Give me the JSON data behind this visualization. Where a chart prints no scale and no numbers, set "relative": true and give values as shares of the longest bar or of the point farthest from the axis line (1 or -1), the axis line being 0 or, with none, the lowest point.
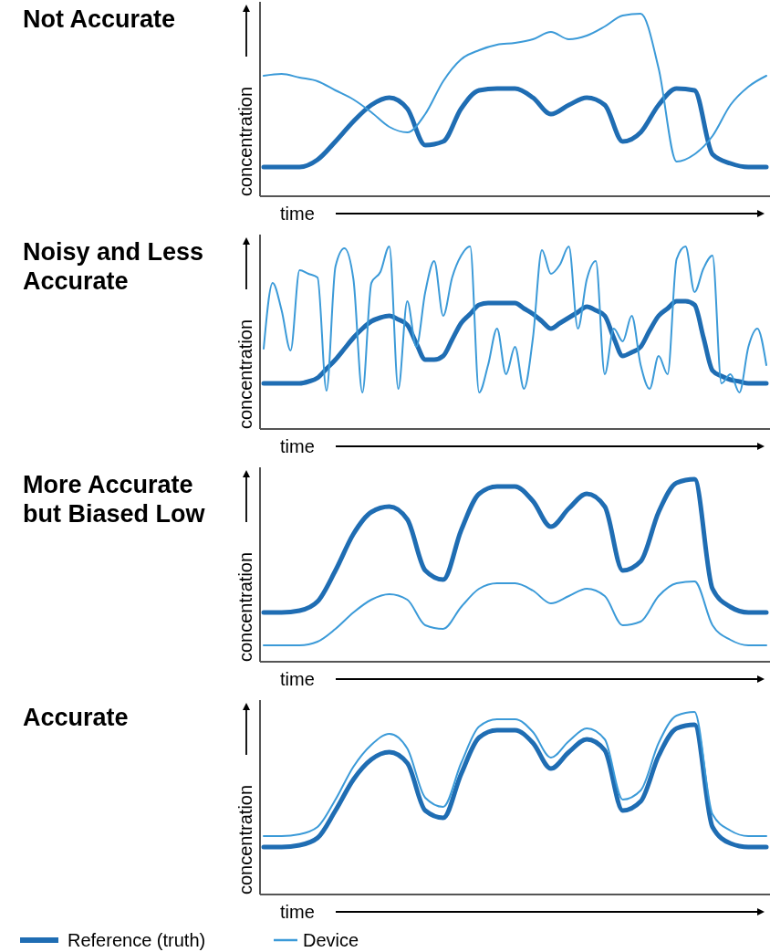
{
  "chart_data": [
    {
      "type": "line",
      "title": "Not Accurate",
      "xlabel": "time",
      "ylabel": "concentration",
      "relative": true,
      "categories": [
        null,
        null,
        null,
        null,
        null,
        null,
        null,
        null,
        null,
        null,
        null,
        null,
        null,
        null,
        null,
        null,
        null,
        null,
        null,
        null,
        null,
        null,
        null,
        null,
        null,
        null,
        null,
        null,
        null
      ],
      "series": [
        {
          "color": "#1f6db3",
          "values": [
            0.16,
            0.16,
            0.16,
            0.2,
            0.3,
            0.41,
            0.5,
            0.54,
            0.48,
            0.28,
            0.3,
            0.48,
            0.58,
            0.59,
            0.59,
            0.54,
            0.45,
            0.5,
            0.54,
            0.5,
            0.3,
            0.35,
            0.5,
            0.59,
            0.58,
            0.23,
            0.18,
            0.16,
            0.16
          ]
        },
        {
          "color": "#3b9ad8",
          "values": [
            0.66,
            0.67,
            0.65,
            0.63,
            0.58,
            0.53,
            0.46,
            0.38,
            0.35,
            0.45,
            0.63,
            0.75,
            0.8,
            0.83,
            0.84,
            0.86,
            0.9,
            0.86,
            0.88,
            0.93,
            0.99,
            1,
            0.7,
            0.19,
            0.23,
            0.33,
            0.5,
            0.6,
            0.66
          ]
        }
      ]
    },
    {
      "type": "line",
      "title": "Noisy and Less Accurate",
      "xlabel": "time",
      "ylabel": "concentration",
      "relative": true,
      "categories": [
        null,
        null,
        null,
        null,
        null,
        null,
        null,
        null,
        null,
        null,
        null,
        null,
        null,
        null,
        null,
        null,
        null,
        null,
        null,
        null,
        null,
        null,
        null,
        null,
        null,
        null,
        null,
        null,
        null,
        null,
        null,
        null,
        null,
        null,
        null,
        null,
        null,
        null,
        null,
        null,
        null,
        null,
        null,
        null,
        null,
        null,
        null,
        null,
        null,
        null,
        null,
        null,
        null,
        null,
        null,
        null,
        null
      ],
      "series": [
        {
          "color": "#1f6db3",
          "values": [
            0.25,
            0.25,
            0.25,
            0.25,
            0.25,
            0.26,
            0.28,
            0.33,
            0.38,
            0.44,
            0.5,
            0.55,
            0.59,
            0.61,
            0.62,
            0.6,
            0.57,
            0.47,
            0.38,
            0.38,
            0.4,
            0.49,
            0.58,
            0.63,
            0.68,
            0.69,
            0.69,
            0.69,
            0.69,
            0.66,
            0.63,
            0.59,
            0.55,
            0.58,
            0.61,
            0.64,
            0.67,
            0.65,
            0.62,
            0.5,
            0.4,
            0.42,
            0.45,
            0.54,
            0.62,
            0.66,
            0.7,
            0.7,
            0.68,
            0.5,
            0.32,
            0.29,
            0.27,
            0.26,
            0.25,
            0.25,
            0.25
          ]
        },
        {
          "color": "#3b9ad8",
          "values": [
            0.44,
            0.8,
            0.65,
            0.43,
            0.87,
            0.85,
            0.83,
            0.21,
            0.89,
            0.99,
            0.82,
            0.2,
            0.8,
            0.86,
            1.0,
            0.22,
            0.7,
            0.45,
            0.75,
            0.92,
            0.62,
            0.83,
            0.95,
            1.0,
            0.2,
            0.35,
            0.55,
            0.3,
            0.45,
            0.22,
            0.5,
            0.98,
            0.85,
            0.9,
            1.0,
            0.55,
            0.82,
            0.92,
            0.3,
            0.55,
            0.48,
            0.62,
            0.35,
            0.22,
            0.4,
            0.3,
            0.93,
            1.0,
            0.75,
            0.88,
            0.95,
            0.25,
            0.3,
            0.2,
            0.45,
            0.55,
            0.35
          ]
        }
      ]
    },
    {
      "type": "line",
      "title": "More Accurate but Biased Low",
      "xlabel": "time",
      "ylabel": "concentration",
      "relative": true,
      "categories": [
        null,
        null,
        null,
        null,
        null,
        null,
        null,
        null,
        null,
        null,
        null,
        null,
        null,
        null,
        null,
        null,
        null,
        null,
        null,
        null,
        null,
        null,
        null,
        null,
        null,
        null,
        null,
        null,
        null
      ],
      "series": [
        {
          "color": "#1f6db3",
          "values": [
            0.27,
            0.27,
            0.28,
            0.33,
            0.5,
            0.7,
            0.82,
            0.85,
            0.78,
            0.5,
            0.45,
            0.72,
            0.92,
            0.96,
            0.96,
            0.88,
            0.74,
            0.84,
            0.92,
            0.85,
            0.5,
            0.55,
            0.82,
            0.98,
            1.0,
            0.4,
            0.3,
            0.27,
            0.27
          ]
        },
        {
          "color": "#3b9ad8",
          "values": [
            0.09,
            0.09,
            0.09,
            0.11,
            0.18,
            0.27,
            0.34,
            0.37,
            0.34,
            0.2,
            0.18,
            0.3,
            0.4,
            0.43,
            0.43,
            0.39,
            0.32,
            0.36,
            0.4,
            0.36,
            0.2,
            0.22,
            0.36,
            0.43,
            0.44,
            0.2,
            0.12,
            0.09,
            0.09
          ]
        }
      ]
    },
    {
      "type": "line",
      "title": "Accurate",
      "xlabel": "time",
      "ylabel": "concentration",
      "relative": true,
      "legend": "bottom",
      "categories": [
        null,
        null,
        null,
        null,
        null,
        null,
        null,
        null,
        null,
        null,
        null,
        null,
        null,
        null,
        null,
        null,
        null,
        null,
        null,
        null,
        null,
        null,
        null,
        null,
        null,
        null,
        null,
        null,
        null
      ],
      "series": [
        {
          "name": "Reference (truth)",
          "color": "#1f6db3",
          "values": [
            0.26,
            0.26,
            0.27,
            0.31,
            0.46,
            0.63,
            0.74,
            0.78,
            0.72,
            0.46,
            0.42,
            0.66,
            0.86,
            0.9,
            0.9,
            0.83,
            0.69,
            0.78,
            0.85,
            0.79,
            0.46,
            0.51,
            0.76,
            0.91,
            0.93,
            0.37,
            0.28,
            0.26,
            0.26
          ]
        },
        {
          "name": "Device",
          "color": "#3b9ad8",
          "values": [
            0.32,
            0.32,
            0.33,
            0.37,
            0.52,
            0.7,
            0.82,
            0.88,
            0.8,
            0.53,
            0.48,
            0.72,
            0.92,
            0.96,
            0.96,
            0.89,
            0.75,
            0.84,
            0.91,
            0.85,
            0.52,
            0.57,
            0.83,
            0.98,
            1.0,
            0.44,
            0.35,
            0.32,
            0.32
          ]
        }
      ]
    }
  ]
}
